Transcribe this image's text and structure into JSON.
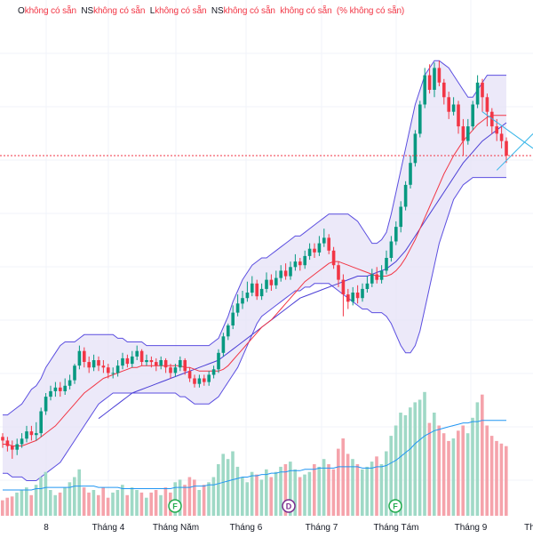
{
  "legend": [
    {
      "label": "O",
      "value": "không có sẵn"
    },
    {
      "label": "NS",
      "value": "không có sẵn"
    },
    {
      "label": "L",
      "value": "không có sẵn"
    },
    {
      "label": "NS",
      "value": "không có sẵn"
    },
    {
      "label": "",
      "value": "không có sẵn"
    },
    {
      "label": "",
      "value": "(% không có sẵn)"
    }
  ],
  "colors": {
    "up": "#089981",
    "down": "#f23645",
    "up_volume": "#9fd9c6",
    "down_volume": "#f5a3ab",
    "ma20": "#f23645",
    "ma50": "#4b3fd6",
    "bb_fill": "#e6e1f7",
    "bb_line": "#5b4ee0",
    "volume_ma": "#2196f3",
    "pattern_line": "#38b6e8",
    "price_line": "#f23645"
  },
  "markers": [
    {
      "letter": "F",
      "color": "#22ab4f"
    },
    {
      "letter": "D",
      "color": "#7b2d8e"
    },
    {
      "letter": "F",
      "color": "#22ab4f"
    }
  ],
  "chart_data": {
    "type": "candlestick",
    "price_ylim": [
      0,
      100
    ],
    "x_tick_labels": [
      "8",
      "Tháng 4",
      "Tháng Năm",
      "Tháng 6",
      "Tháng 7",
      "Tháng Tám",
      "Tháng 9",
      "Th"
    ],
    "grid": true,
    "candles": [
      [
        19.0,
        18.0,
        20.0,
        16.0
      ],
      [
        18.0,
        16.5,
        19.0,
        15.0
      ],
      [
        16.5,
        15.5,
        18.0,
        13.0
      ],
      [
        15.5,
        17.0,
        18.5,
        14.0
      ],
      [
        17.0,
        18.5,
        20.0,
        16.0
      ],
      [
        18.5,
        20.5,
        22.0,
        17.5
      ],
      [
        20.5,
        19.5,
        22.0,
        18.0
      ],
      [
        19.5,
        20.0,
        23.0,
        18.0
      ],
      [
        20.0,
        26.0,
        27.0,
        19.0
      ],
      [
        26.0,
        30.0,
        31.0,
        25.0
      ],
      [
        30.0,
        31.5,
        33.0,
        29.0
      ],
      [
        31.5,
        32.5,
        34.0,
        30.0
      ],
      [
        32.5,
        31.5,
        34.0,
        30.0
      ],
      [
        31.5,
        33.0,
        35.0,
        30.5
      ],
      [
        33.0,
        34.5,
        36.0,
        32.0
      ],
      [
        34.5,
        38.5,
        39.0,
        33.5
      ],
      [
        38.5,
        42.5,
        44.0,
        37.5
      ],
      [
        42.5,
        39.5,
        43.5,
        38.0
      ],
      [
        39.5,
        38.0,
        41.0,
        36.5
      ],
      [
        38.0,
        40.0,
        41.5,
        37.0
      ],
      [
        40.0,
        38.5,
        41.0,
        37.0
      ],
      [
        38.5,
        38.0,
        40.0,
        36.5
      ],
      [
        38.0,
        36.5,
        39.0,
        35.0
      ],
      [
        36.5,
        36.5,
        38.0,
        35.0
      ],
      [
        36.5,
        38.5,
        40.0,
        35.5
      ],
      [
        38.5,
        40.5,
        42.0,
        37.5
      ],
      [
        40.5,
        39.0,
        41.5,
        38.0
      ],
      [
        39.0,
        41.0,
        42.5,
        38.0
      ],
      [
        41.0,
        42.5,
        44.0,
        40.0
      ],
      [
        42.5,
        39.5,
        43.0,
        38.5
      ],
      [
        39.5,
        40.0,
        41.5,
        38.5
      ],
      [
        40.0,
        39.5,
        41.0,
        38.0
      ],
      [
        39.5,
        38.5,
        40.5,
        37.0
      ],
      [
        38.5,
        40.0,
        41.0,
        37.5
      ],
      [
        40.0,
        38.0,
        40.5,
        36.5
      ],
      [
        38.0,
        36.5,
        39.0,
        35.0
      ],
      [
        36.5,
        38.0,
        39.0,
        35.5
      ],
      [
        38.0,
        40.0,
        41.0,
        37.0
      ],
      [
        40.0,
        37.0,
        40.5,
        36.0
      ],
      [
        37.0,
        35.0,
        38.0,
        34.0
      ],
      [
        35.0,
        33.5,
        36.0,
        32.5
      ],
      [
        33.5,
        35.0,
        36.0,
        32.5
      ],
      [
        35.0,
        34.0,
        36.0,
        33.0
      ],
      [
        34.0,
        36.0,
        37.0,
        33.0
      ],
      [
        36.0,
        37.5,
        38.5,
        35.0
      ],
      [
        37.5,
        42.0,
        43.0,
        36.5
      ],
      [
        42.0,
        46.5,
        47.5,
        41.0
      ],
      [
        46.5,
        49.5,
        50.0,
        45.5
      ],
      [
        49.5,
        53.0,
        55.0,
        48.5
      ],
      [
        53.0,
        55.5,
        58.0,
        52.0
      ],
      [
        55.5,
        57.0,
        59.0,
        54.0
      ],
      [
        57.0,
        58.5,
        61.5,
        56.0
      ],
      [
        58.5,
        61.0,
        63.0,
        57.5
      ],
      [
        61.0,
        57.5,
        62.0,
        56.5
      ],
      [
        57.5,
        59.5,
        61.0,
        56.5
      ],
      [
        59.5,
        62.0,
        64.0,
        58.5
      ],
      [
        62.0,
        60.5,
        63.5,
        59.0
      ],
      [
        60.5,
        62.5,
        64.5,
        59.5
      ],
      [
        62.5,
        64.5,
        66.0,
        61.5
      ],
      [
        64.5,
        63.0,
        66.5,
        62.0
      ],
      [
        63.0,
        65.5,
        67.0,
        62.0
      ],
      [
        65.5,
        67.0,
        69.0,
        64.5
      ],
      [
        67.0,
        66.0,
        68.0,
        64.5
      ],
      [
        66.0,
        68.5,
        70.0,
        65.0
      ],
      [
        68.5,
        70.5,
        72.0,
        67.5
      ],
      [
        70.5,
        69.5,
        72.0,
        68.0
      ],
      [
        69.5,
        72.0,
        74.0,
        68.5
      ],
      [
        72.0,
        73.5,
        76.0,
        71.0
      ],
      [
        73.5,
        70.0,
        74.5,
        69.0
      ],
      [
        70.0,
        66.0,
        71.0,
        65.0
      ],
      [
        66.0,
        62.0,
        67.0,
        60.0
      ],
      [
        62.0,
        58.0,
        63.5,
        52.0
      ],
      [
        58.0,
        56.0,
        59.5,
        54.0
      ],
      [
        56.0,
        58.5,
        60.0,
        55.0
      ],
      [
        58.5,
        57.0,
        60.5,
        55.5
      ],
      [
        57.0,
        59.5,
        61.0,
        56.0
      ],
      [
        59.5,
        61.0,
        63.0,
        58.5
      ],
      [
        61.0,
        63.5,
        65.0,
        60.0
      ],
      [
        63.5,
        62.0,
        65.5,
        61.0
      ],
      [
        62.0,
        64.5,
        66.0,
        61.0
      ],
      [
        64.5,
        68.0,
        70.0,
        63.5
      ],
      [
        68.0,
        72.5,
        74.0,
        67.0
      ],
      [
        72.5,
        76.5,
        78.0,
        71.5
      ],
      [
        76.5,
        82.0,
        83.5,
        75.0
      ],
      [
        82.0,
        88.0,
        89.0,
        81.0
      ],
      [
        88.0,
        94.0,
        96.0,
        87.0
      ],
      [
        94.0,
        102.0,
        103.0,
        93.0
      ],
      [
        102.0,
        110.0,
        111.0,
        101.0
      ],
      [
        110.0,
        118.0,
        120.0,
        109.0
      ],
      [
        118.0,
        114.0,
        121.0,
        113.0
      ],
      [
        114.0,
        120.0,
        121.5,
        112.0
      ],
      [
        120.0,
        116.0,
        122.0,
        115.0
      ],
      [
        116.0,
        112.0,
        117.0,
        110.0
      ],
      [
        112.0,
        108.0,
        113.5,
        106.0
      ],
      [
        108.0,
        110.0,
        112.0,
        107.0
      ],
      [
        110.0,
        104.0,
        111.0,
        102.0
      ],
      [
        104.0,
        100.0,
        106.0,
        96.0
      ],
      [
        100.0,
        104.0,
        106.0,
        99.0
      ],
      [
        104.0,
        110.0,
        111.0,
        103.0
      ],
      [
        110.0,
        116.0,
        118.0,
        109.0
      ],
      [
        116.0,
        112.0,
        117.0,
        108.0
      ],
      [
        112.0,
        108.0,
        113.0,
        104.0
      ],
      [
        108.0,
        104.0,
        109.0,
        102.0
      ],
      [
        104.0,
        102.0,
        106.0,
        100.0
      ],
      [
        102.0,
        100.0,
        104.0,
        98.0
      ],
      [
        100.0,
        96.0,
        101.0,
        94.0
      ]
    ],
    "volume": [
      12,
      14,
      15,
      18,
      20,
      22,
      16,
      24,
      30,
      34,
      20,
      16,
      18,
      22,
      26,
      30,
      36,
      22,
      18,
      20,
      16,
      22,
      14,
      18,
      20,
      24,
      16,
      22,
      20,
      18,
      14,
      18,
      20,
      16,
      22,
      18,
      26,
      28,
      24,
      30,
      28,
      20,
      24,
      26,
      30,
      40,
      48,
      44,
      50,
      38,
      30,
      26,
      34,
      32,
      28,
      36,
      30,
      34,
      38,
      40,
      42,
      36,
      30,
      32,
      34,
      40,
      38,
      44,
      40,
      36,
      52,
      60,
      48,
      44,
      40,
      36,
      38,
      42,
      46,
      40,
      50,
      62,
      70,
      80,
      78,
      84,
      88,
      90,
      96,
      72,
      80,
      70,
      64,
      58,
      60,
      66,
      70,
      64,
      76,
      88,
      94,
      70,
      62,
      58,
      56,
      54
    ],
    "bb_upper": [
      25,
      25,
      26,
      27,
      28,
      30,
      32,
      33,
      35,
      38,
      40,
      42,
      44,
      45,
      45,
      45,
      46,
      47,
      47,
      47,
      47,
      47,
      47,
      47,
      46,
      46,
      45,
      45,
      45,
      45,
      44,
      44,
      44,
      44,
      44,
      44,
      44,
      44,
      44,
      44,
      44,
      44,
      44,
      44,
      45,
      46,
      49,
      52,
      56,
      59,
      62,
      64,
      66,
      67,
      68,
      68,
      69,
      70,
      71,
      72,
      73,
      74,
      74,
      75,
      76,
      77,
      78,
      79,
      80,
      80,
      80,
      80,
      80,
      79,
      78,
      76,
      74,
      72,
      72,
      73,
      75,
      80,
      86,
      92,
      98,
      104,
      110,
      114,
      118,
      120,
      122,
      122,
      121,
      120,
      118,
      116,
      114,
      112,
      112,
      114,
      116,
      118,
      118,
      118,
      118,
      118
    ],
    "bb_lower": [
      9,
      9,
      8,
      8,
      8,
      7,
      7,
      7,
      8,
      9,
      10,
      11,
      12,
      14,
      16,
      18,
      20,
      22,
      24,
      26,
      28,
      29,
      30,
      31,
      31,
      31,
      31,
      31,
      31,
      31,
      31,
      31,
      31,
      31,
      31,
      31,
      31,
      30,
      30,
      29,
      28,
      28,
      28,
      28,
      29,
      30,
      32,
      34,
      36,
      38,
      41,
      44,
      47,
      50,
      52,
      53,
      54,
      55,
      56,
      57,
      58,
      59,
      59,
      60,
      60,
      61,
      61,
      61,
      61,
      60,
      59,
      58,
      57,
      56,
      55,
      54,
      54,
      53,
      53,
      53,
      52,
      50,
      47,
      44,
      42,
      42,
      44,
      48,
      54,
      60,
      66,
      72,
      76,
      80,
      84,
      86,
      88,
      89,
      90,
      90,
      90,
      90,
      90,
      90,
      90,
      90
    ],
    "ma20": [
      17,
      17,
      16.5,
      16.5,
      16.5,
      17,
      17.5,
      18,
      19,
      20,
      21,
      22,
      23.5,
      25,
      26.5,
      28,
      29.5,
      31,
      32,
      33,
      34,
      35,
      35.5,
      36,
      36.5,
      37,
      37.5,
      38,
      38,
      38.5,
      38.5,
      38.5,
      38.5,
      38.5,
      38.5,
      38.5,
      38.5,
      38.5,
      38,
      38,
      37.5,
      37,
      37,
      37,
      37,
      37,
      37.5,
      38.5,
      40,
      41.5,
      43,
      44.5,
      46,
      47.5,
      49,
      50,
      51,
      52.5,
      54,
      55.5,
      57,
      58.5,
      60,
      61.5,
      62.5,
      63.5,
      64.5,
      65.5,
      66.5,
      67,
      67,
      66.5,
      66,
      65.5,
      65,
      64.5,
      64,
      63.5,
      63,
      63,
      63,
      63.5,
      64.5,
      66,
      68,
      70.5,
      73,
      76,
      79,
      82,
      85,
      88,
      91,
      93.5,
      96,
      98,
      100,
      101.5,
      103,
      104.5,
      105.5,
      106.5,
      107,
      107,
      107,
      107
    ],
    "ma50": [
      null,
      null,
      null,
      null,
      null,
      null,
      null,
      null,
      null,
      null,
      null,
      null,
      null,
      null,
      null,
      null,
      null,
      null,
      null,
      null,
      24,
      25,
      26,
      27,
      28,
      29,
      30,
      31,
      31.5,
      32,
      32.5,
      33,
      33.5,
      34,
      34.5,
      35,
      35.5,
      36,
      36.5,
      37,
      37.5,
      38,
      38.5,
      39,
      39.5,
      40,
      41,
      42,
      43,
      44,
      45,
      46,
      47,
      48,
      49,
      50,
      51,
      52,
      53,
      54,
      55,
      56,
      57,
      57.5,
      58,
      58.5,
      59,
      59.5,
      60,
      60.5,
      61,
      61.5,
      62,
      62.5,
      63,
      63,
      63,
      63.5,
      64,
      64.5,
      65,
      66,
      67,
      68.5,
      70,
      72,
      74,
      76,
      78,
      80,
      82,
      84,
      86,
      88,
      90,
      92,
      94,
      95.5,
      97,
      98.5,
      100,
      101,
      102,
      103,
      104,
      105
    ],
    "volume_ma": [
      20,
      20,
      20,
      20,
      20,
      20,
      20,
      21,
      21,
      22,
      22,
      22,
      22,
      22,
      22,
      23,
      23,
      23,
      23,
      23,
      22,
      22,
      22,
      22,
      22,
      21,
      21,
      21,
      21,
      21,
      21,
      21,
      21,
      21,
      21,
      21,
      22,
      22,
      22,
      22,
      23,
      23,
      23,
      24,
      24,
      25,
      26,
      27,
      28,
      29,
      30,
      30,
      31,
      31,
      32,
      32,
      33,
      33,
      34,
      34,
      35,
      35,
      35,
      36,
      36,
      36,
      37,
      37,
      37,
      37,
      38,
      38,
      38,
      38,
      38,
      37,
      37,
      37,
      38,
      38,
      39,
      41,
      43,
      46,
      49,
      52,
      56,
      59,
      62,
      64,
      66,
      67,
      68,
      69,
      70,
      71,
      72,
      72,
      73,
      73,
      74,
      74,
      74,
      74,
      74,
      74
    ]
  }
}
